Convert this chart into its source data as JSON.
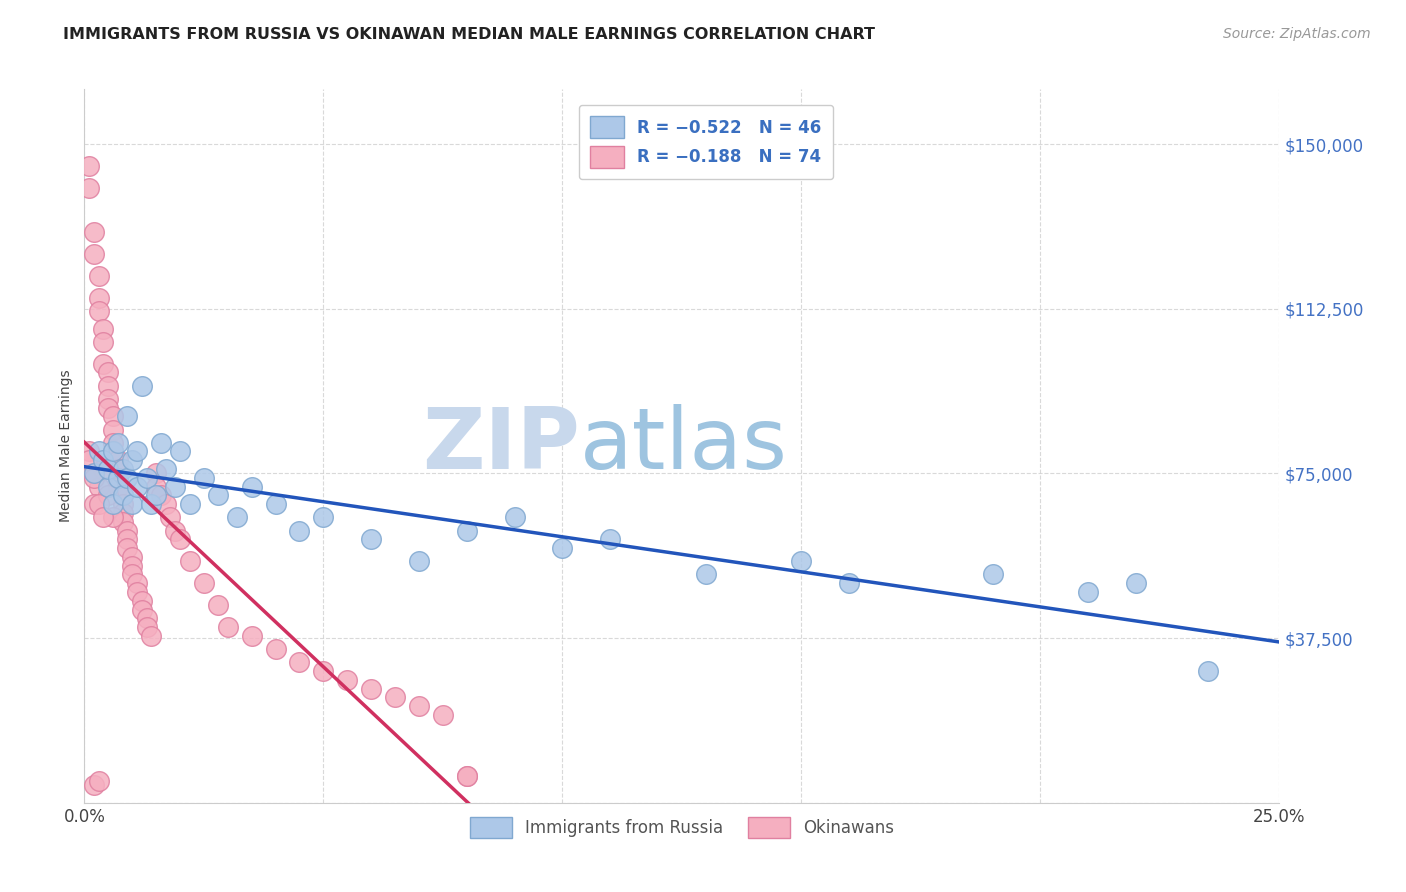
{
  "title": "IMMIGRANTS FROM RUSSIA VS OKINAWAN MEDIAN MALE EARNINGS CORRELATION CHART",
  "source": "Source: ZipAtlas.com",
  "ylabel": "Median Male Earnings",
  "xlim": [
    0.0,
    0.25
  ],
  "ylim": [
    0,
    162500
  ],
  "blue_scatter_color": "#adc8e8",
  "blue_scatter_edge": "#80a8d0",
  "pink_scatter_color": "#f5afc0",
  "pink_scatter_edge": "#e080a0",
  "blue_line_color": "#2255bb",
  "pink_line_color": "#d03060",
  "pink_dash_color": "#e8a0b8",
  "title_color": "#222222",
  "source_color": "#999999",
  "ytick_color": "#4472c4",
  "legend_text_color": "#3a6fc0",
  "russia_x": [
    0.002,
    0.003,
    0.004,
    0.005,
    0.005,
    0.006,
    0.006,
    0.007,
    0.007,
    0.008,
    0.008,
    0.009,
    0.009,
    0.01,
    0.01,
    0.011,
    0.011,
    0.012,
    0.013,
    0.014,
    0.015,
    0.016,
    0.017,
    0.019,
    0.02,
    0.022,
    0.025,
    0.028,
    0.032,
    0.035,
    0.04,
    0.045,
    0.05,
    0.06,
    0.07,
    0.08,
    0.09,
    0.1,
    0.11,
    0.13,
    0.15,
    0.16,
    0.19,
    0.21,
    0.22,
    0.235
  ],
  "russia_y": [
    75000,
    80000,
    78000,
    72000,
    76000,
    68000,
    80000,
    74000,
    82000,
    70000,
    76000,
    88000,
    74000,
    78000,
    68000,
    80000,
    72000,
    95000,
    74000,
    68000,
    70000,
    82000,
    76000,
    72000,
    80000,
    68000,
    74000,
    70000,
    65000,
    72000,
    68000,
    62000,
    65000,
    60000,
    55000,
    62000,
    65000,
    58000,
    60000,
    52000,
    55000,
    50000,
    52000,
    48000,
    50000,
    30000
  ],
  "okinawa_x": [
    0.001,
    0.001,
    0.002,
    0.002,
    0.003,
    0.003,
    0.003,
    0.004,
    0.004,
    0.004,
    0.005,
    0.005,
    0.005,
    0.005,
    0.006,
    0.006,
    0.006,
    0.006,
    0.007,
    0.007,
    0.007,
    0.007,
    0.008,
    0.008,
    0.008,
    0.008,
    0.009,
    0.009,
    0.009,
    0.01,
    0.01,
    0.01,
    0.011,
    0.011,
    0.012,
    0.012,
    0.013,
    0.013,
    0.014,
    0.015,
    0.015,
    0.016,
    0.017,
    0.018,
    0.019,
    0.02,
    0.022,
    0.025,
    0.028,
    0.03,
    0.035,
    0.04,
    0.045,
    0.05,
    0.055,
    0.06,
    0.065,
    0.07,
    0.075,
    0.08,
    0.002,
    0.003,
    0.001,
    0.001,
    0.002,
    0.004,
    0.005,
    0.006,
    0.08,
    0.002,
    0.003,
    0.004,
    0.002,
    0.003
  ],
  "okinawa_y": [
    140000,
    145000,
    130000,
    125000,
    120000,
    115000,
    112000,
    108000,
    105000,
    100000,
    98000,
    95000,
    92000,
    90000,
    88000,
    85000,
    82000,
    80000,
    78000,
    76000,
    74000,
    72000,
    70000,
    68000,
    66000,
    64000,
    62000,
    60000,
    58000,
    56000,
    54000,
    52000,
    50000,
    48000,
    46000,
    44000,
    42000,
    40000,
    38000,
    75000,
    72000,
    70000,
    68000,
    65000,
    62000,
    60000,
    55000,
    50000,
    45000,
    40000,
    38000,
    35000,
    32000,
    30000,
    28000,
    26000,
    24000,
    22000,
    20000,
    6000,
    75000,
    72000,
    80000,
    78000,
    68000,
    76000,
    70000,
    65000,
    6000,
    74000,
    68000,
    65000,
    4000,
    5000
  ]
}
